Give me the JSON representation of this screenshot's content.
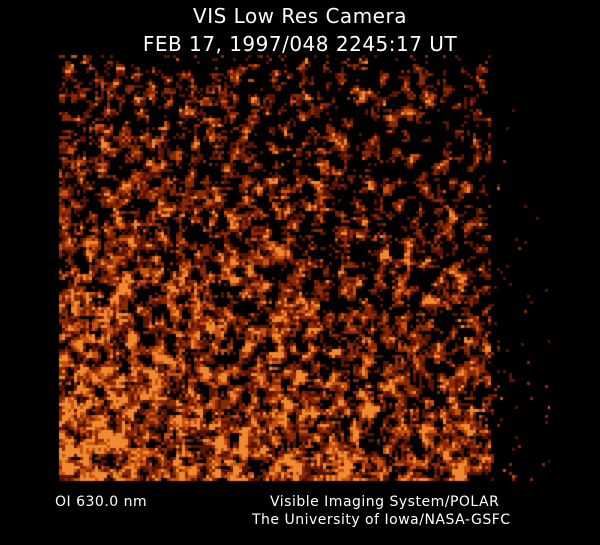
{
  "header": {
    "title": "VIS Low Res Camera",
    "timestamp": "FEB 17, 1997/048 2245:17 UT"
  },
  "image": {
    "colormap": [
      "#000000",
      "#5a1400",
      "#8a2a05",
      "#c8520f",
      "#f08a30"
    ]
  },
  "footer": {
    "filter": "OI  630.0 nm",
    "credit_line1": "Visible Imaging System/POLAR",
    "credit_line2": "The University of Iowa/NASA-GSFC"
  }
}
